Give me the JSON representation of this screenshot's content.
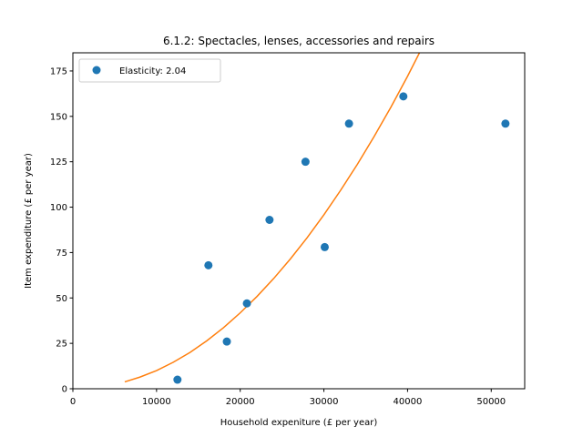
{
  "chart_data": {
    "type": "scatter",
    "title": "6.1.2: Spectacles, lenses, accessories and repairs",
    "xlabel": "Household expeniture (£ per year)",
    "ylabel": "Item expenditure (£ per year)",
    "xlim": [
      0,
      54000
    ],
    "ylim": [
      0,
      185
    ],
    "xticks": [
      0,
      10000,
      20000,
      30000,
      40000,
      50000
    ],
    "yticks": [
      0,
      25,
      50,
      75,
      100,
      125,
      150,
      175
    ],
    "grid": false,
    "legend_position": "top-left",
    "series": [
      {
        "name": "Elasticity: 2.04",
        "kind": "points",
        "color": "#1f77b4",
        "points": [
          {
            "x": 12500,
            "y": 5
          },
          {
            "x": 16200,
            "y": 68
          },
          {
            "x": 18400,
            "y": 26
          },
          {
            "x": 20800,
            "y": 47
          },
          {
            "x": 23500,
            "y": 93
          },
          {
            "x": 27800,
            "y": 125
          },
          {
            "x": 30100,
            "y": 78
          },
          {
            "x": 33000,
            "y": 146
          },
          {
            "x": 39500,
            "y": 161
          },
          {
            "x": 51700,
            "y": 146
          }
        ]
      },
      {
        "kind": "fit-line",
        "color": "#ff7f0e",
        "x": [
          6200,
          8000,
          10000,
          12000,
          14000,
          16000,
          18000,
          20000,
          22000,
          24000,
          26000,
          28000,
          30000,
          32000,
          34000,
          36000,
          38000,
          40000,
          41700
        ],
        "y": [
          3.8,
          6.4,
          10.0,
          14.6,
          20.0,
          26.4,
          33.6,
          41.8,
          50.8,
          60.7,
          71.5,
          83.2,
          95.8,
          109.3,
          123.6,
          138.9,
          155.0,
          172.1,
          187.5
        ]
      }
    ]
  }
}
